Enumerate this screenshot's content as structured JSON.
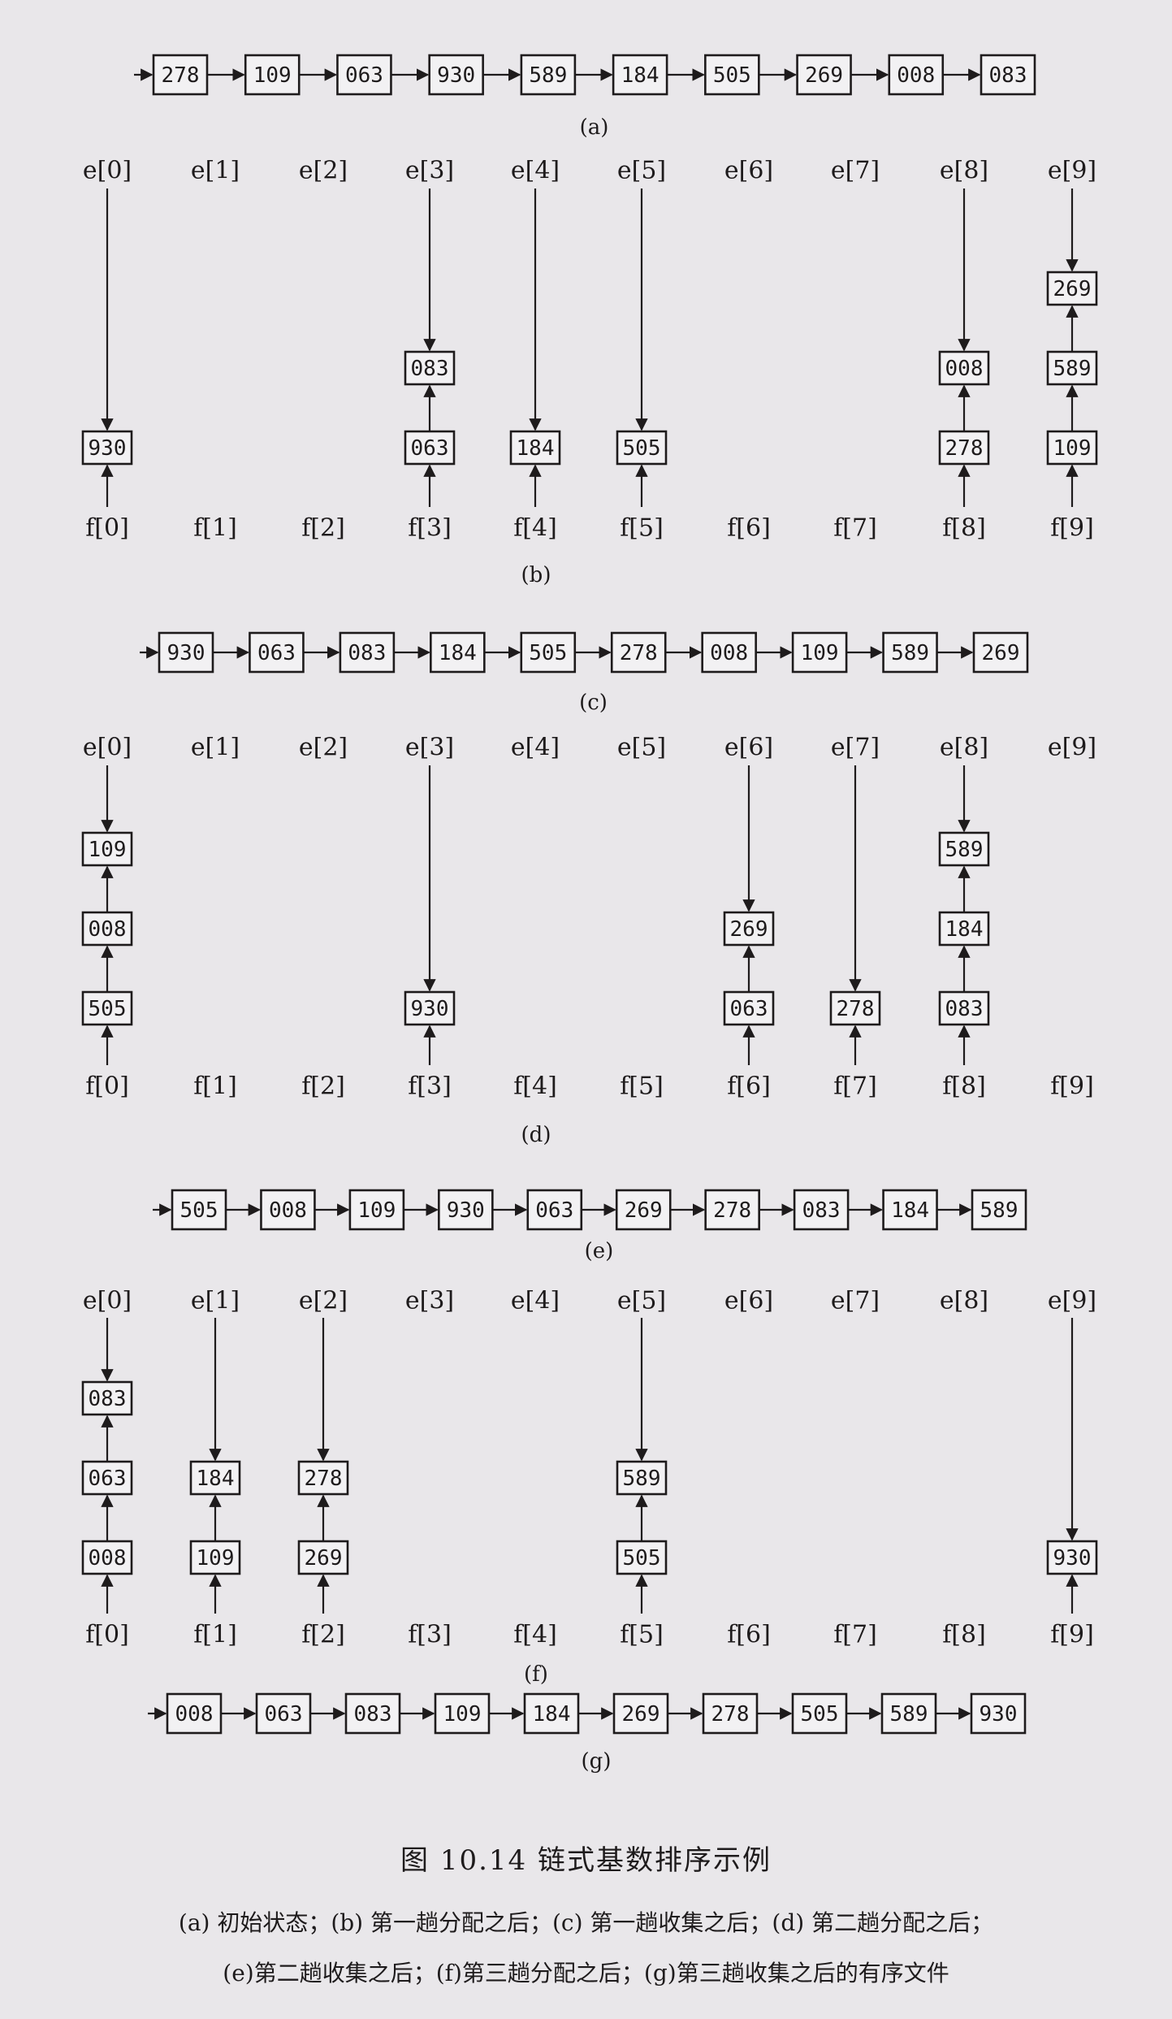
{
  "list_a": [
    "278",
    "109",
    "063",
    "930",
    "589",
    "184",
    "505",
    "269",
    "008",
    "083"
  ],
  "list_c": [
    "930",
    "063",
    "083",
    "184",
    "505",
    "278",
    "008",
    "109",
    "589",
    "269"
  ],
  "list_e": [
    "505",
    "008",
    "109",
    "930",
    "063",
    "269",
    "278",
    "083",
    "184",
    "589"
  ],
  "list_g": [
    "008",
    "063",
    "083",
    "109",
    "184",
    "269",
    "278",
    "505",
    "589",
    "930"
  ],
  "e_labels": [
    "e[0]",
    "e[1]",
    "e[2]",
    "e[3]",
    "e[4]",
    "e[5]",
    "e[6]",
    "e[7]",
    "e[8]",
    "e[9]"
  ],
  "f_labels": [
    "f[0]",
    "f[1]",
    "f[2]",
    "f[3]",
    "f[4]",
    "f[5]",
    "f[6]",
    "f[7]",
    "f[8]",
    "f[9]"
  ],
  "buckets_b": [
    [
      "930"
    ],
    [],
    [],
    [
      "063",
      "083"
    ],
    [
      "184"
    ],
    [
      "505"
    ],
    [],
    [],
    [
      "278",
      "008"
    ],
    [
      "109",
      "589",
      "269"
    ]
  ],
  "buckets_d": [
    [
      "505",
      "008",
      "109"
    ],
    [],
    [],
    [
      "930"
    ],
    [],
    [],
    [
      "063",
      "269"
    ],
    [
      "278"
    ],
    [
      "083",
      "184",
      "589"
    ],
    []
  ],
  "buckets_f": [
    [
      "008",
      "063",
      "083"
    ],
    [
      "109",
      "184"
    ],
    [
      "269",
      "278"
    ],
    [],
    [],
    [
      "505",
      "589"
    ],
    [],
    [],
    [],
    [
      "930"
    ]
  ],
  "panel_labels": {
    "a": "(a)",
    "b": "(b)",
    "c": "(c)",
    "d": "(d)",
    "e": "(e)",
    "f": "(f)",
    "g": "(g)"
  },
  "caption": {
    "title": "图 10.14   链式基数排序示例",
    "line1": "(a) 初始状态；(b) 第一趟分配之后；(c) 第一趟收集之后；(d) 第二趟分配之后；",
    "line2": "(e)第二趟收集之后；(f)第三趟分配之后；(g)第三趟收集之后的有序文件"
  }
}
